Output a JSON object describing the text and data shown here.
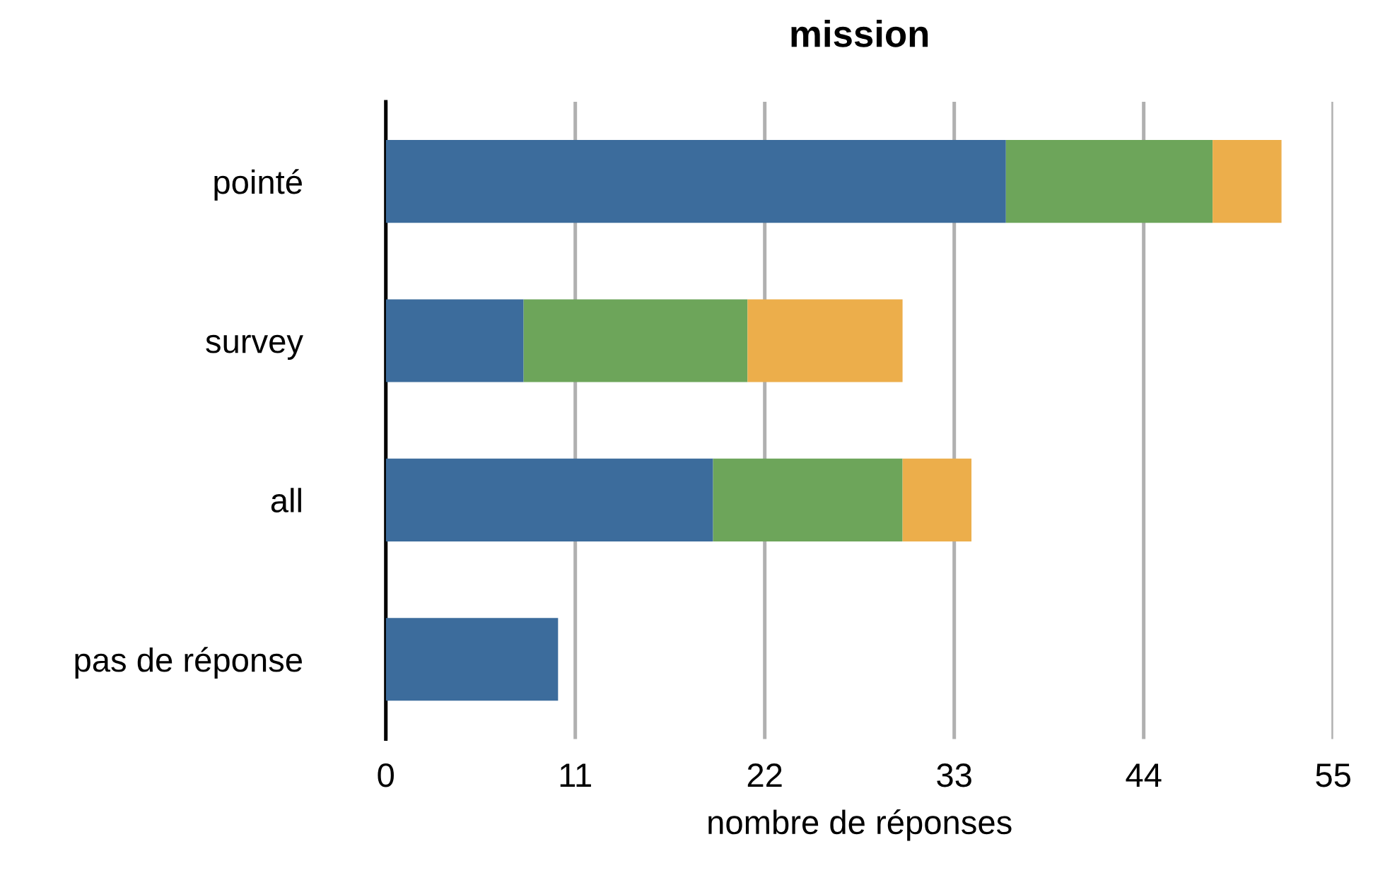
{
  "chart_data": {
    "type": "bar",
    "orientation": "horizontal",
    "stacked": true,
    "title": "mission",
    "xlabel": "nombre de réponses",
    "categories": [
      "pointé",
      "survey",
      "all",
      "pas de réponse"
    ],
    "series": [
      {
        "color": "#3c6c9c",
        "values": [
          36,
          8,
          19,
          10
        ]
      },
      {
        "color": "#6da55a",
        "values": [
          12,
          13,
          11,
          0
        ]
      },
      {
        "color": "#ecae4b",
        "values": [
          4,
          9,
          4,
          0
        ]
      }
    ],
    "xlim": [
      0,
      55
    ],
    "xticks": [
      0,
      11,
      22,
      33,
      44,
      55
    ],
    "grid": "x"
  }
}
